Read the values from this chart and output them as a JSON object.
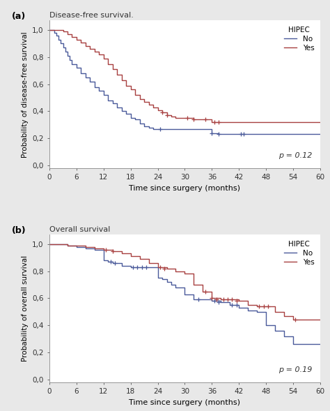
{
  "panel_a": {
    "title": "Disease-free survival.",
    "ylabel": "Probability of disease-free survival",
    "xlabel": "Time since surgery (months)",
    "pvalue": "p = 0.12",
    "no_hipec_t": [
      0,
      1.0,
      1.5,
      2.0,
      2.5,
      3.0,
      3.5,
      4.0,
      4.5,
      5.0,
      6.0,
      7.0,
      8.0,
      9.0,
      10.0,
      11.0,
      12.0,
      13.0,
      14.0,
      15.0,
      16.0,
      17.0,
      18.0,
      19.0,
      20.0,
      21.0,
      22.0,
      23.0,
      24.0,
      25.0,
      36.0,
      37.5,
      42.0,
      43.0,
      60.0
    ],
    "no_hipec_s": [
      1.0,
      0.98,
      0.96,
      0.93,
      0.9,
      0.87,
      0.84,
      0.81,
      0.78,
      0.75,
      0.72,
      0.68,
      0.65,
      0.62,
      0.58,
      0.55,
      0.52,
      0.48,
      0.46,
      0.43,
      0.4,
      0.38,
      0.35,
      0.34,
      0.31,
      0.29,
      0.28,
      0.27,
      0.27,
      0.27,
      0.24,
      0.23,
      0.23,
      0.23,
      0.23
    ],
    "no_censor_t": [
      24.5,
      36.0,
      37.5,
      42.5,
      43.0
    ],
    "no_censor_s": [
      0.27,
      0.24,
      0.23,
      0.23,
      0.23
    ],
    "yes_hipec_t": [
      0,
      1.0,
      2.0,
      3.0,
      4.0,
      5.0,
      6.0,
      7.0,
      8.0,
      9.0,
      10.0,
      11.0,
      12.0,
      13.0,
      14.0,
      15.0,
      16.0,
      17.0,
      18.0,
      19.0,
      20.0,
      21.0,
      22.0,
      23.0,
      24.0,
      25.0,
      26.0,
      27.0,
      28.0,
      29.0,
      30.0,
      32.0,
      34.0,
      36.0,
      37.0,
      42.0,
      60.0
    ],
    "yes_hipec_s": [
      1.0,
      1.0,
      1.0,
      0.99,
      0.97,
      0.95,
      0.93,
      0.91,
      0.88,
      0.86,
      0.84,
      0.82,
      0.79,
      0.75,
      0.71,
      0.67,
      0.63,
      0.59,
      0.56,
      0.52,
      0.49,
      0.47,
      0.45,
      0.43,
      0.41,
      0.39,
      0.37,
      0.36,
      0.35,
      0.35,
      0.35,
      0.34,
      0.34,
      0.32,
      0.32,
      0.32,
      0.32
    ],
    "yes_censor_t": [
      25.0,
      26.0,
      30.5,
      32.0,
      34.5,
      36.5,
      37.5
    ],
    "yes_censor_s": [
      0.39,
      0.37,
      0.35,
      0.34,
      0.34,
      0.32,
      0.32
    ]
  },
  "panel_b": {
    "title": "Overall survival",
    "ylabel": "Probability of overall survival",
    "xlabel": "Time since surgery (months)",
    "pvalue": "p = 0.19",
    "no_hipec_t": [
      0,
      2.0,
      4.0,
      6.0,
      8.0,
      10.0,
      12.0,
      13.0,
      14.0,
      16.0,
      18.0,
      20.0,
      22.0,
      24.0,
      25.0,
      26.0,
      27.0,
      28.0,
      30.0,
      32.0,
      34.0,
      36.0,
      38.0,
      40.0,
      42.0,
      44.0,
      46.0,
      48.0,
      50.0,
      52.0,
      54.0,
      60.0
    ],
    "no_hipec_s": [
      1.0,
      1.0,
      0.99,
      0.98,
      0.97,
      0.96,
      0.88,
      0.87,
      0.86,
      0.84,
      0.83,
      0.83,
      0.83,
      0.75,
      0.74,
      0.72,
      0.7,
      0.68,
      0.63,
      0.59,
      0.59,
      0.58,
      0.57,
      0.55,
      0.53,
      0.51,
      0.5,
      0.4,
      0.36,
      0.32,
      0.26,
      0.26
    ],
    "no_censor_t": [
      13.5,
      14.5,
      18.5,
      19.5,
      20.5,
      21.5,
      33.0,
      36.5,
      37.5,
      40.5,
      41.5
    ],
    "no_censor_s": [
      0.87,
      0.86,
      0.83,
      0.83,
      0.83,
      0.83,
      0.59,
      0.58,
      0.57,
      0.55,
      0.55
    ],
    "yes_hipec_t": [
      0,
      2.0,
      4.0,
      6.0,
      8.0,
      10.0,
      12.0,
      14.0,
      16.0,
      18.0,
      20.0,
      22.0,
      24.0,
      26.0,
      28.0,
      30.0,
      32.0,
      34.0,
      36.0,
      38.0,
      40.0,
      42.0,
      44.0,
      46.0,
      48.0,
      50.0,
      52.0,
      54.0,
      60.0
    ],
    "yes_hipec_s": [
      1.0,
      1.0,
      0.99,
      0.99,
      0.98,
      0.97,
      0.96,
      0.95,
      0.93,
      0.91,
      0.89,
      0.86,
      0.83,
      0.82,
      0.8,
      0.78,
      0.7,
      0.65,
      0.6,
      0.59,
      0.59,
      0.58,
      0.55,
      0.54,
      0.54,
      0.5,
      0.47,
      0.44,
      0.44
    ],
    "yes_censor_t": [
      12.5,
      14.0,
      24.5,
      25.5,
      34.5,
      36.0,
      37.0,
      38.5,
      39.5,
      40.5,
      41.5,
      46.5,
      47.5,
      48.5,
      54.5
    ],
    "yes_censor_s": [
      0.96,
      0.95,
      0.83,
      0.82,
      0.65,
      0.6,
      0.59,
      0.59,
      0.59,
      0.59,
      0.58,
      0.54,
      0.54,
      0.54,
      0.44
    ]
  },
  "color_no": "#4a5a9a",
  "color_yes": "#a84040",
  "bg_color": "#ffffff",
  "fig_bg": "#e8e8e8"
}
